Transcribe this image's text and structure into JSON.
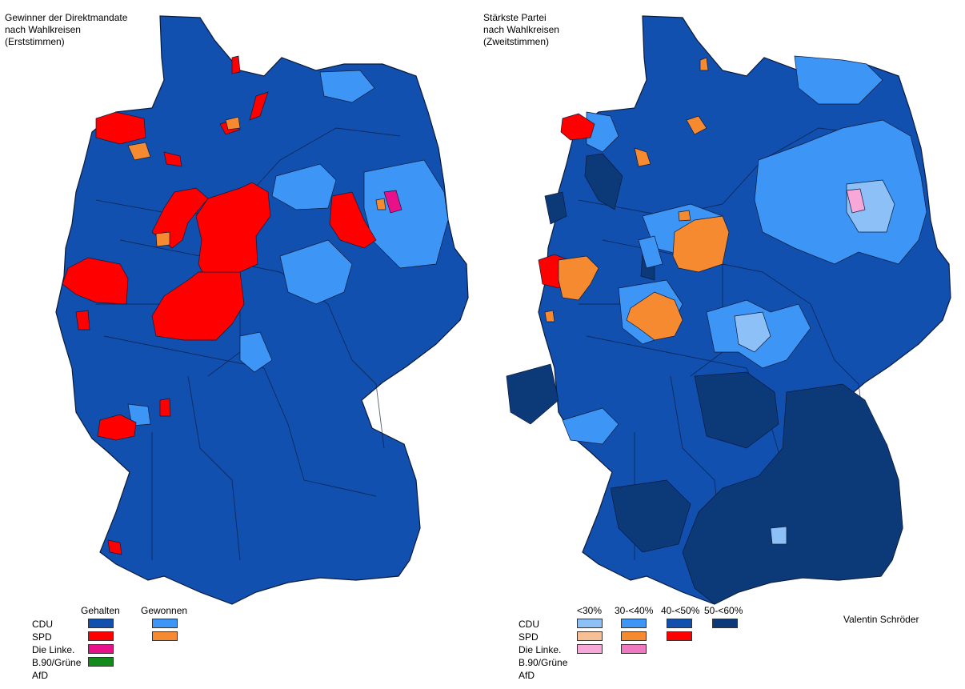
{
  "left_map": {
    "title": "Gewinner der Direktmandate\nnach Wahlkreisen\n(Erststimmen)",
    "legend": {
      "column_headers": [
        "Gehalten",
        "Gewonnen"
      ],
      "parties": [
        "CDU",
        "SPD",
        "Die Linke.",
        "B.90/Grüne",
        "AfD"
      ],
      "swatches": [
        {
          "party": "CDU",
          "column": "Gehalten",
          "color": "#1250b0"
        },
        {
          "party": "CDU",
          "column": "Gewonnen",
          "color": "#3d95f5"
        },
        {
          "party": "SPD",
          "column": "Gehalten",
          "color": "#ff0000"
        },
        {
          "party": "SPD",
          "column": "Gewonnen",
          "color": "#f58a30"
        },
        {
          "party": "Die Linke.",
          "column": "Gehalten",
          "color": "#e8118a"
        },
        {
          "party": "B.90/Grüne",
          "column": "Gehalten",
          "color": "#138a1c"
        }
      ]
    }
  },
  "right_map": {
    "title": "Stärkste Partei\nnach Wahlkreisen\n(Zweitstimmen)",
    "legend": {
      "column_headers": [
        "<30%",
        "30-<40%",
        "40-<50%",
        "50-<60%"
      ],
      "parties": [
        "CDU",
        "SPD",
        "Die Linke.",
        "B.90/Grüne",
        "AfD"
      ],
      "swatches": [
        {
          "party": "CDU",
          "column": "<30%",
          "color": "#8cc0f7"
        },
        {
          "party": "CDU",
          "column": "30-<40%",
          "color": "#3d95f5"
        },
        {
          "party": "CDU",
          "column": "40-<50%",
          "color": "#1250b0"
        },
        {
          "party": "CDU",
          "column": "50-<60%",
          "color": "#0c3a78"
        },
        {
          "party": "SPD",
          "column": "<30%",
          "color": "#f7bf95"
        },
        {
          "party": "SPD",
          "column": "30-<40%",
          "color": "#f58a30"
        },
        {
          "party": "SPD",
          "column": "40-<50%",
          "color": "#ff0000"
        },
        {
          "party": "Die Linke.",
          "column": "<30%",
          "color": "#f7a8d8"
        },
        {
          "party": "Die Linke.",
          "column": "30-<40%",
          "color": "#ef78c0"
        }
      ]
    }
  },
  "author": "Valentin Schröder",
  "colors": {
    "cdu_held": "#1250b0",
    "cdu_won": "#3d95f5",
    "cdu_light": "#8cc0f7",
    "cdu_dark": "#0c3a78",
    "spd_held": "#ff0000",
    "spd_won": "#f58a30",
    "linke": "#e8118a",
    "border": "#0a1a3a"
  }
}
